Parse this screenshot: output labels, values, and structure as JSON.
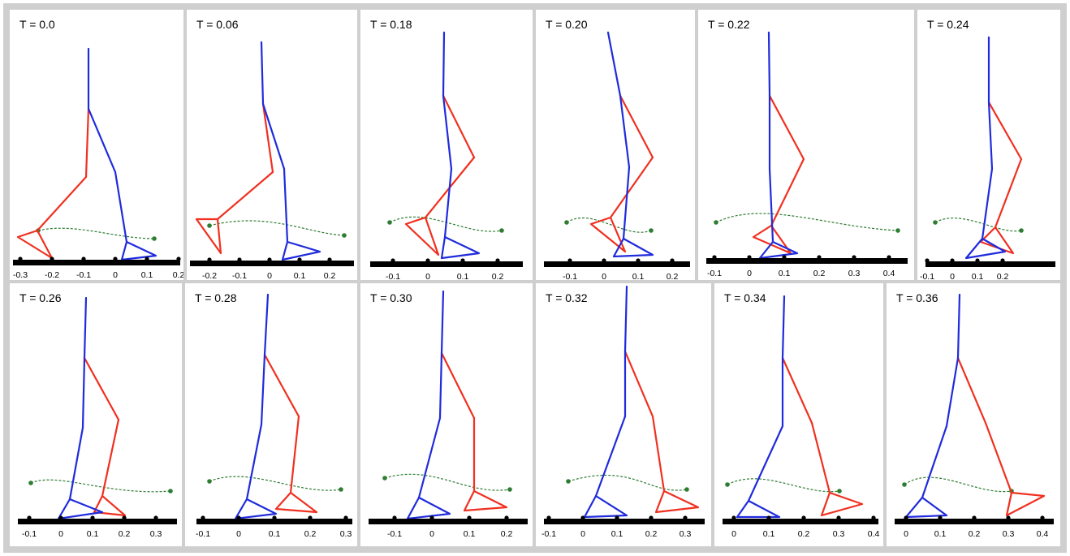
{
  "colors": {
    "trunk_leg": "#1f2bdc",
    "swing_leg": "#f03020",
    "trajectory": "#2e7d32",
    "ground": "#000000"
  },
  "frames": [
    {
      "label": "T = 0.0",
      "ticks": [
        "-0.3",
        "-0.2",
        "-0.1",
        "0",
        "0.1",
        "0.2"
      ]
    },
    {
      "label": "T = 0.06",
      "ticks": [
        "-0.2",
        "-0.1",
        "0",
        "0.1",
        "0.2"
      ]
    },
    {
      "label": "T = 0.18",
      "ticks": [
        "-0.1",
        "0",
        "0.1",
        "0.2"
      ]
    },
    {
      "label": "T = 0.20",
      "ticks": [
        "-0.1",
        "0",
        "0.1",
        "0.2"
      ]
    },
    {
      "label": "T = 0.22",
      "ticks": [
        "-0.1",
        "0",
        "0.1",
        "0.2",
        "0.3",
        "0.4"
      ]
    },
    {
      "label": "T = 0.24",
      "ticks": [
        "-0.1",
        "0",
        "0.1",
        "0.2"
      ]
    },
    {
      "label": "T = 0.26",
      "ticks": [
        "-0.1",
        "0",
        "0.1",
        "0.2",
        "0.3"
      ]
    },
    {
      "label": "T = 0.28",
      "ticks": [
        "-0.1",
        "0",
        "0.1",
        "0.2",
        "0.3"
      ]
    },
    {
      "label": "T = 0.30",
      "ticks": [
        "-0.1",
        "0",
        "0.1",
        "0.2",
        "0.3"
      ]
    },
    {
      "label": "T = 0.32",
      "ticks": [
        "-0.1",
        "0",
        "0.1",
        "0.2",
        "0.3"
      ]
    },
    {
      "label": "T = 0.34",
      "ticks": [
        "0",
        "0.1",
        "0.2",
        "0.3",
        "0.4"
      ]
    },
    {
      "label": "T = 0.36",
      "ticks": [
        "0",
        "0.1",
        "0.2",
        "0.3",
        "0.4"
      ]
    }
  ]
}
